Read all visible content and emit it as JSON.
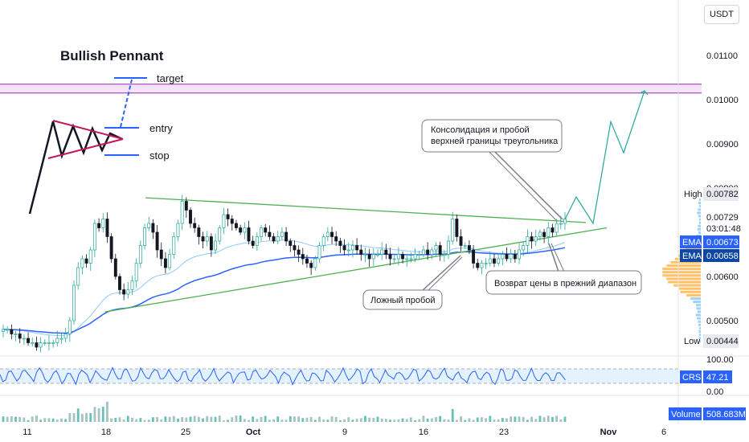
{
  "currency": "USDT",
  "chart_data": {
    "type": "candlestick",
    "price_axis": {
      "ticks": [
        "0.01100",
        "0.01000",
        "0.00900",
        "0.00800",
        "0.00600",
        "0.00500"
      ],
      "tick_values": [
        0.011,
        0.01,
        0.009,
        0.008,
        0.006,
        0.005
      ],
      "ylim": [
        0.0042,
        0.0118
      ]
    },
    "x_axis": {
      "ticks": [
        "11",
        "18",
        "25",
        "Oct",
        "9",
        "16",
        "23",
        "Nov",
        "6"
      ]
    },
    "badges": {
      "high": {
        "label": "High",
        "value": "0.00782",
        "num": 0.00782
      },
      "last": {
        "value": "0.00729",
        "countdown": "03:01:48",
        "num": 0.00729
      },
      "ema1": {
        "label": "EMA",
        "value": "0.00673",
        "num": 0.00673
      },
      "ema2": {
        "label": "EMA",
        "value": "0.00658",
        "num": 0.00658
      },
      "low": {
        "label": "Low",
        "value": "0.00444",
        "num": 0.00444
      }
    },
    "resistance_zone": [
      0.01015,
      0.01035
    ],
    "close_series": [
      0.0048,
      0.0048,
      0.0047,
      0.0047,
      0.0046,
      0.0046,
      0.0045,
      0.0045,
      0.0044,
      0.0045,
      0.0045,
      0.0045,
      0.0045,
      0.0046,
      0.0046,
      0.0047,
      0.005,
      0.0058,
      0.0062,
      0.0064,
      0.0063,
      0.0066,
      0.0072,
      0.0071,
      0.0073,
      0.0069,
      0.0064,
      0.006,
      0.0057,
      0.0056,
      0.0057,
      0.0059,
      0.0063,
      0.0067,
      0.0071,
      0.0072,
      0.007,
      0.0066,
      0.0064,
      0.0062,
      0.0065,
      0.0069,
      0.0072,
      0.0077,
      0.0075,
      0.0072,
      0.0071,
      0.0069,
      0.0068,
      0.0069,
      0.0066,
      0.0068,
      0.0071,
      0.0074,
      0.0073,
      0.0072,
      0.0071,
      0.007,
      0.0071,
      0.0068,
      0.0067,
      0.0069,
      0.0071,
      0.007,
      0.0069,
      0.0068,
      0.0069,
      0.007,
      0.0068,
      0.0067,
      0.0066,
      0.0065,
      0.0064,
      0.0063,
      0.0062,
      0.0064,
      0.0067,
      0.0069,
      0.007,
      0.0069,
      0.0068,
      0.0067,
      0.0066,
      0.0066,
      0.0067,
      0.0066,
      0.0065,
      0.0065,
      0.0064,
      0.0065,
      0.0065,
      0.0066,
      0.0065,
      0.0064,
      0.0064,
      0.0065,
      0.0064,
      0.0064,
      0.0064,
      0.0065,
      0.0065,
      0.0066,
      0.0065,
      0.0066,
      0.0067,
      0.0065,
      0.0065,
      0.0068,
      0.0073,
      0.0069,
      0.0067,
      0.0067,
      0.0066,
      0.0063,
      0.0062,
      0.0063,
      0.0063,
      0.0064,
      0.0063,
      0.0064,
      0.0065,
      0.0064,
      0.0065,
      0.0064,
      0.0066,
      0.0067,
      0.0069,
      0.0068,
      0.0069,
      0.007,
      0.0069,
      0.0071,
      0.007,
      0.0072,
      0.0072,
      0.0073
    ],
    "projection": [
      0.00729,
      0.0078,
      0.0072,
      0.0095,
      0.0088,
      0.0102
    ],
    "ema_slow": {
      "start": 0.0051,
      "end": 0.00658
    },
    "ema_fast": {
      "start": 0.0049,
      "end": 0.00673
    },
    "upper_trendline": [
      0.00778,
      0.00722
    ],
    "lower_trendline": [
      0.0052,
      0.0071
    ],
    "indicator": {
      "label": "CRSI",
      "value": "47.21",
      "ticks": [
        "100.00",
        "0.00"
      ]
    },
    "volume": {
      "label": "Volume",
      "value": "508.683M"
    }
  },
  "annotations": {
    "pennant_title": "Bullish Pennant",
    "target": "target",
    "entry": "entry",
    "stop": "stop",
    "consolidation_line1": "Консолидация и пробой",
    "consolidation_line2": "верхней границы треугольника",
    "false_breakout": "Ложный пробой",
    "return_range": "Возврат цены в прежний диапазон"
  },
  "colors": {
    "up": "#26a69a",
    "down": "#131722",
    "ema_blue": "#2962ff",
    "ema_light": "#90caf9",
    "trend_green": "#4caf50",
    "resistance": "#9c27b0",
    "crsi": "#2962ff",
    "label_blue": "#2962ff"
  }
}
